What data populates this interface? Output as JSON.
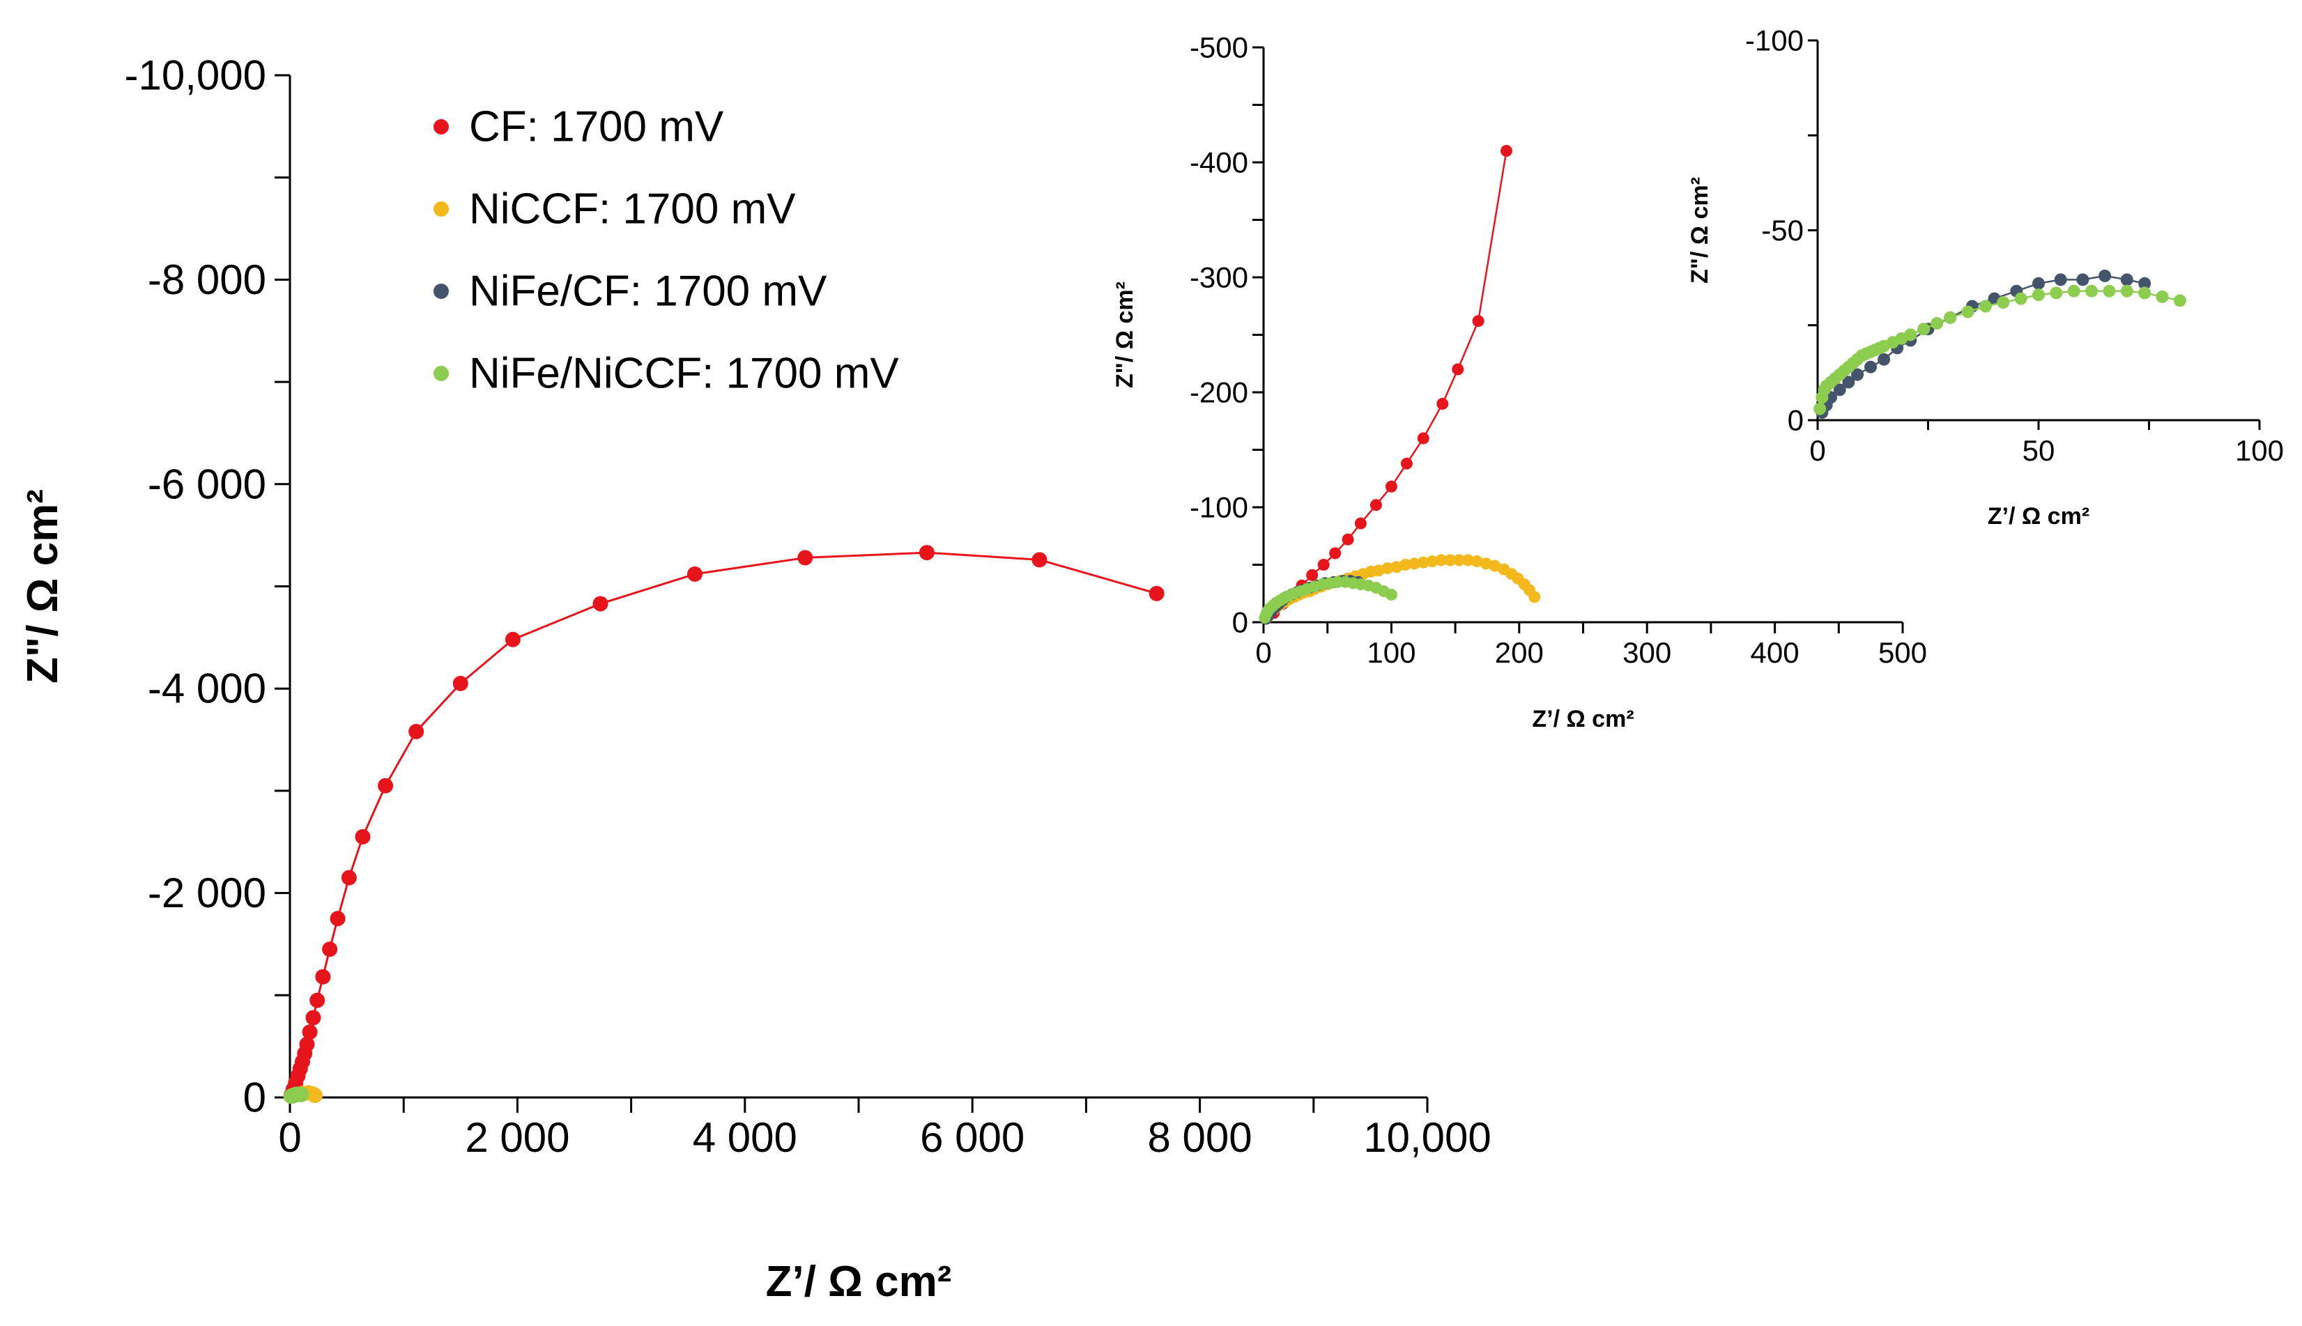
{
  "chart_data": [
    {
      "id": "main",
      "type": "scatter",
      "xlabel": "Z’/ Ω cm²",
      "ylabel": "Z\"/ Ω cm²",
      "xlim": [
        0,
        10000
      ],
      "ylim": [
        0,
        -10000
      ],
      "xticks": [
        0,
        2000,
        4000,
        6000,
        8000,
        10000
      ],
      "xtick_labels": [
        "0",
        "2 000",
        "4 000",
        "6 000",
        "8 000",
        "10,000"
      ],
      "yticks": [
        0,
        -2000,
        -4000,
        -6000,
        -8000,
        -10000
      ],
      "ytick_labels": [
        "0",
        "-2 000",
        "-4 000",
        "-6 000",
        "-8 000",
        "-10,000"
      ],
      "legend_position": "top-left",
      "legend": [
        {
          "name": "CF: 1700 mV",
          "color": "#e8141b"
        },
        {
          "name": "NiCCF: 1700 mV",
          "color": "#f2b81c"
        },
        {
          "name": "NiFe/CF: 1700 mV",
          "color": "#44546a"
        },
        {
          "name": "NiFe/NiCCF: 1700 mV",
          "color": "#8ccc4e"
        }
      ],
      "series": [
        {
          "name": "CF: 1700 mV",
          "color": "#e8141b",
          "line": true,
          "x": [
            10,
            30,
            50,
            70,
            90,
            110,
            130,
            150,
            175,
            205,
            240,
            290,
            350,
            420,
            520,
            640,
            840,
            1110,
            1500,
            1960,
            2730,
            3560,
            4530,
            5600,
            6590,
            7620
          ],
          "y": [
            -20,
            -80,
            -140,
            -210,
            -280,
            -350,
            -430,
            -520,
            -640,
            -780,
            -950,
            -1180,
            -1450,
            -1750,
            -2150,
            -2550,
            -3050,
            -3580,
            -4050,
            -4480,
            -4830,
            -5120,
            -5280,
            -5330,
            -5260,
            -4930
          ]
        },
        {
          "name": "NiCCF: 1700 mV",
          "color": "#f2b81c",
          "line": false,
          "x": [
            60,
            110,
            160,
            200,
            220
          ],
          "y": [
            -30,
            -40,
            -45,
            -35,
            -20
          ]
        },
        {
          "name": "NiFe/CF: 1700 mV",
          "color": "#44546a",
          "line": false,
          "x": [
            20,
            45,
            70,
            90
          ],
          "y": [
            -15,
            -25,
            -32,
            -30
          ]
        },
        {
          "name": "NiFe/NiCCF: 1700 mV",
          "color": "#8ccc4e",
          "line": false,
          "x": [
            10,
            30,
            55,
            80,
            100
          ],
          "y": [
            -12,
            -22,
            -30,
            -32,
            -28
          ]
        }
      ]
    },
    {
      "id": "inset1",
      "type": "scatter",
      "xlabel": "Z’/ Ω cm²",
      "ylabel": "Z\"/ Ω cm²",
      "xlim": [
        0,
        500
      ],
      "ylim": [
        0,
        -500
      ],
      "xticks": [
        0,
        100,
        200,
        300,
        400,
        500
      ],
      "xtick_labels": [
        "0",
        "100",
        "200",
        "300",
        "400",
        "500"
      ],
      "yticks": [
        0,
        -100,
        -200,
        -300,
        -400,
        -500
      ],
      "ytick_labels": [
        "0",
        "-100",
        "-200",
        "-300",
        "-400",
        "-500"
      ],
      "series": [
        {
          "name": "CF: 1700 mV",
          "color": "#e8141b",
          "line": true,
          "x": [
            8,
            15,
            22,
            30,
            38,
            47,
            56,
            66,
            76,
            88,
            100,
            112,
            125,
            140,
            152,
            168,
            190
          ],
          "y": [
            -8,
            -16,
            -24,
            -32,
            -41,
            -50,
            -60,
            -72,
            -86,
            -102,
            -118,
            -138,
            -160,
            -190,
            -220,
            -262,
            -410
          ]
        },
        {
          "name": "NiCCF: 1700 mV",
          "color": "#f2b81c",
          "line": false,
          "x": [
            3,
            5,
            8,
            11,
            14,
            17,
            20,
            24,
            28,
            32,
            36,
            40,
            45,
            50,
            55,
            60,
            66,
            72,
            78,
            84,
            90,
            97,
            104,
            111,
            118,
            125,
            132,
            139,
            146,
            153,
            160,
            167,
            174,
            181,
            188,
            194,
            199,
            204,
            208,
            212
          ],
          "y": [
            -4,
            -8,
            -11,
            -14,
            -16,
            -18,
            -20,
            -22,
            -24,
            -26,
            -27,
            -29,
            -31,
            -33,
            -35,
            -36,
            -38,
            -40,
            -42,
            -44,
            -45,
            -47,
            -48,
            -50,
            -51,
            -52,
            -53,
            -54,
            -54,
            -54,
            -54,
            -53,
            -51,
            -49,
            -46,
            -42,
            -38,
            -33,
            -28,
            -22
          ]
        },
        {
          "name": "NiFe/CF: 1700 mV",
          "color": "#44546a",
          "line": false,
          "x": [
            2,
            4,
            6,
            8,
            10,
            12,
            15,
            18,
            22,
            26,
            30,
            36,
            42,
            48,
            55,
            62,
            68,
            74
          ],
          "y": [
            -3,
            -6,
            -9,
            -12,
            -14,
            -16,
            -19,
            -22,
            -24,
            -26,
            -28,
            -30,
            -32,
            -34,
            -35,
            -36,
            -36,
            -35
          ]
        },
        {
          "name": "NiFe/NiCCF: 1700 mV",
          "color": "#8ccc4e",
          "line": false,
          "x": [
            1,
            2,
            3,
            4,
            6,
            8,
            10,
            13,
            16,
            20,
            24,
            29,
            34,
            40,
            46,
            52,
            58,
            64,
            70,
            76,
            82,
            88,
            94,
            100
          ],
          "y": [
            -4,
            -7,
            -9,
            -11,
            -13,
            -15,
            -17,
            -19,
            -21,
            -23,
            -25,
            -27,
            -29,
            -31,
            -33,
            -34,
            -35,
            -35,
            -34,
            -33,
            -32,
            -30,
            -27,
            -24
          ]
        }
      ]
    },
    {
      "id": "inset2",
      "type": "scatter",
      "xlabel": "Z’/ Ω cm²",
      "ylabel": "Z\"/ Ω cm²",
      "xlim": [
        0,
        100
      ],
      "ylim": [
        0,
        -100
      ],
      "xticks": [
        0,
        50,
        100
      ],
      "xtick_labels": [
        "0",
        "50",
        "100"
      ],
      "yticks": [
        0,
        -50,
        -100
      ],
      "ytick_labels": [
        "0",
        "-50",
        "-100"
      ],
      "series": [
        {
          "name": "NiFe/CF: 1700 mV",
          "color": "#44546a",
          "line": true,
          "x": [
            1,
            2,
            3,
            5,
            7,
            9,
            12,
            15,
            18,
            21,
            25,
            30,
            35,
            40,
            45,
            50,
            55,
            60,
            65,
            70,
            74
          ],
          "y": [
            -2,
            -4,
            -6,
            -8,
            -10,
            -12,
            -14,
            -16,
            -19,
            -21,
            -24,
            -27,
            -30,
            -32,
            -34,
            -36,
            -37,
            -37,
            -38,
            -37,
            -36
          ]
        },
        {
          "name": "NiFe/NiCCF: 1700 mV",
          "color": "#8ccc4e",
          "line": true,
          "x": [
            0.5,
            1,
            1.5,
            2,
            3,
            4,
            5,
            6,
            7,
            8,
            9,
            10,
            11,
            12,
            13,
            14,
            15,
            17,
            19,
            21,
            24,
            27,
            30,
            34,
            38,
            42,
            46,
            50,
            54,
            58,
            62,
            66,
            70,
            74,
            78,
            82
          ],
          "y": [
            -3,
            -6,
            -8,
            -9,
            -10,
            -11,
            -12,
            -13,
            -14,
            -15,
            -16,
            -17,
            -17.5,
            -18,
            -18.5,
            -19,
            -19.5,
            -20.5,
            -21.5,
            -22.5,
            -24,
            -25.5,
            -27,
            -28.5,
            -30,
            -31,
            -32,
            -33,
            -33.5,
            -34,
            -34,
            -34,
            -34,
            -33.5,
            -32.5,
            -31.5
          ]
        }
      ]
    }
  ]
}
